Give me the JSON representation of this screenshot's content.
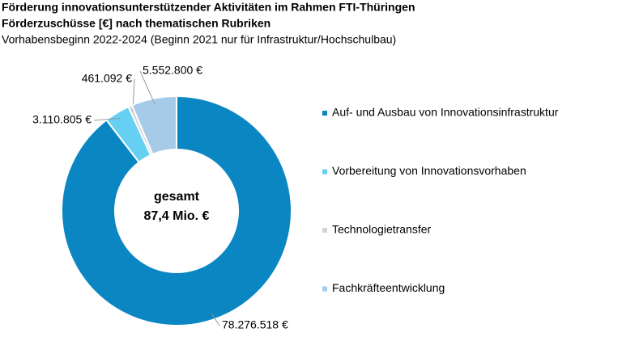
{
  "chart_data": {
    "type": "donut",
    "title": [
      "Förderung innovationsunterstützender Aktivitäten im Rahmen FTI-Thüringen",
      "Förderzuschüsse [€] nach thematischen Rubriken"
    ],
    "subtitle": "Vorhabensbeginn 2022-2024 (Beginn 2021 nur für Infrastruktur/Hochschulbau)",
    "categories": [
      "Auf- und Ausbau von Innovationsinfrastruktur",
      "Vorbereitung von Innovationsvorhaben",
      "Technologietransfer",
      "Fachkräfteentwicklung"
    ],
    "values": [
      78276518,
      3110805,
      461092,
      5552800
    ],
    "value_labels": [
      "78.276.518 €",
      "3.110.805 €",
      "461.092 €",
      "5.552.800 €"
    ],
    "colors": [
      "#0a86c3",
      "#66d0f3",
      "#d4d4d4",
      "#a6cbe8"
    ],
    "center_label": [
      "gesamt",
      "87,4 Mio. €"
    ]
  }
}
